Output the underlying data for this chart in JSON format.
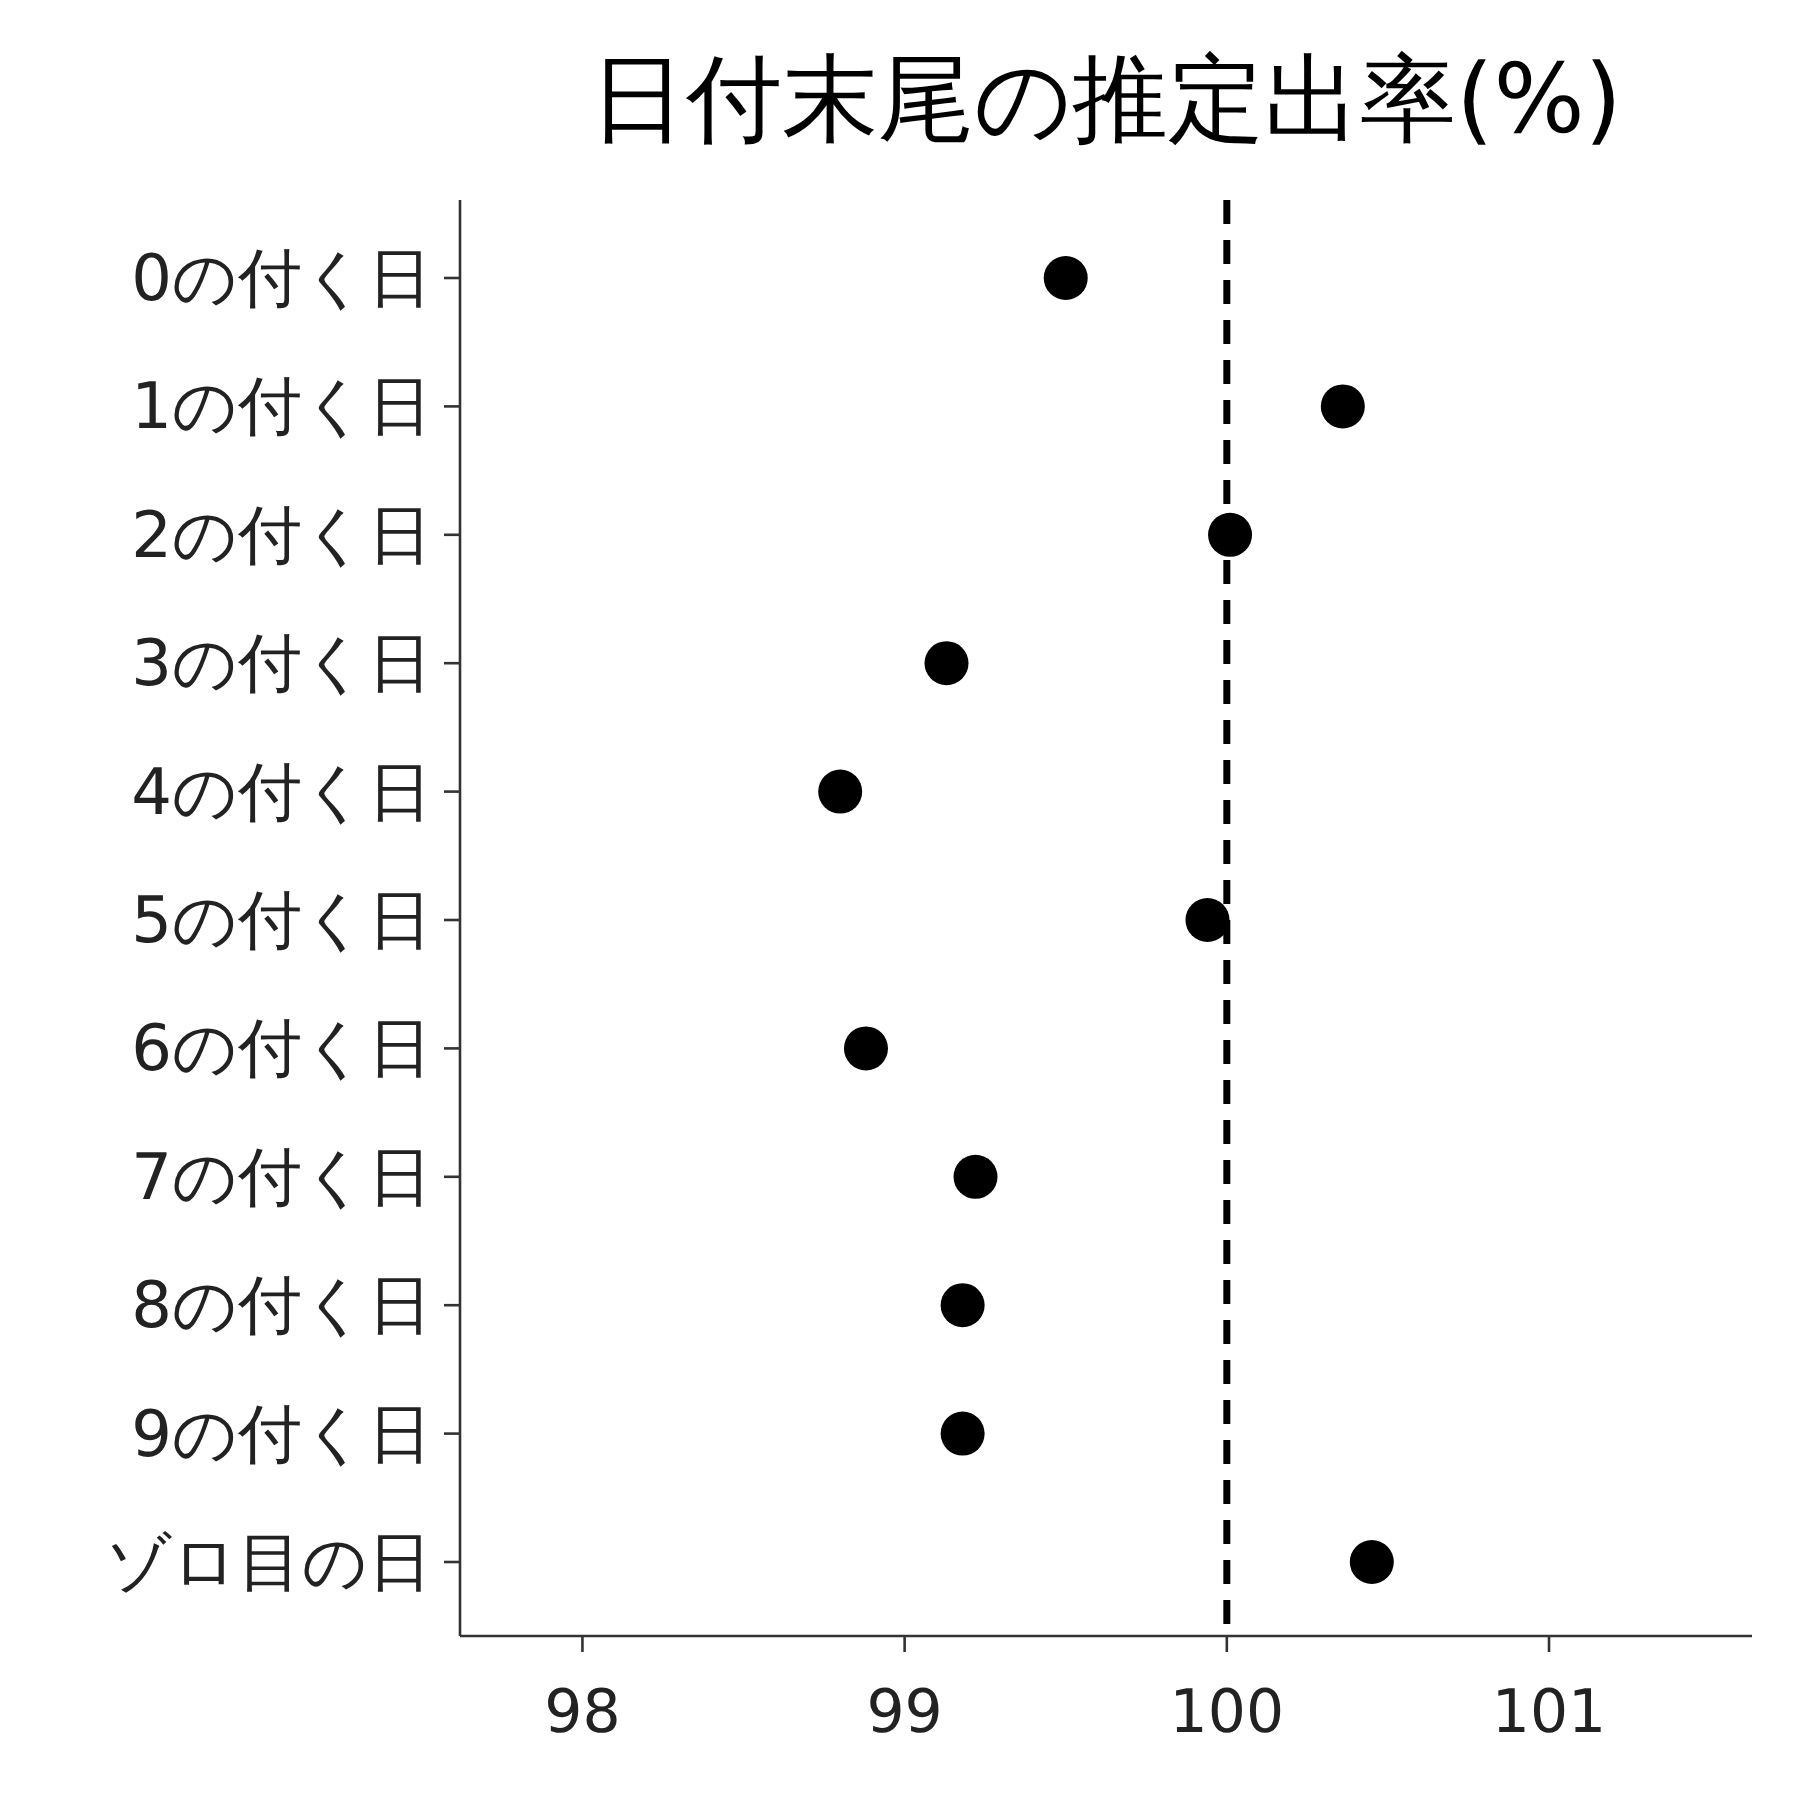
{
  "chart_data": {
    "type": "scatter",
    "title": "日付末尾の推定出率(%)",
    "orientation": "horizontal",
    "categories": [
      "0の付く日",
      "1の付く日",
      "2の付く日",
      "3の付く日",
      "4の付く日",
      "5の付く日",
      "6の付く日",
      "7の付く日",
      "8の付く日",
      "9の付く日",
      "ゾロ目の日"
    ],
    "values": [
      99.5,
      100.36,
      100.01,
      99.13,
      98.8,
      99.94,
      98.88,
      99.22,
      99.18,
      99.18,
      100.45
    ],
    "color": "#000000",
    "marker": "circle",
    "xlim": [
      97.62,
      101.63
    ],
    "xticks": [
      98,
      99,
      100,
      101
    ],
    "ref_lines": [
      {
        "axis": "x",
        "value": 100,
        "color": "#000000",
        "line_style": "dashed"
      }
    ],
    "grid": false
  }
}
